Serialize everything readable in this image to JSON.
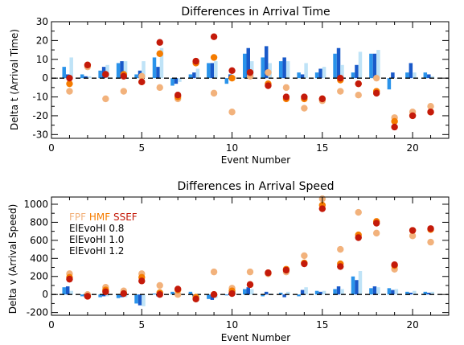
{
  "colors": {
    "fpf": "#f2b27c",
    "hmf": "#f57c00",
    "ssef": "#c41a0a",
    "elevohi_08": "#1959c9",
    "elevohi_10": "#2a93ea",
    "elevohi_12": "#bfe3f7"
  },
  "chart_data": [
    {
      "type": "bar",
      "title": "Differences in Arrival Time",
      "xlabel": "Event Number",
      "ylabel": "Delta t (Arrival Time)",
      "xlim": [
        0,
        22
      ],
      "ylim": [
        -32,
        30
      ],
      "xticks": [
        0,
        5,
        10,
        15,
        20
      ],
      "yticks": [
        -30,
        -20,
        -10,
        0,
        10,
        20,
        30
      ],
      "events": [
        1,
        2,
        3,
        4,
        5,
        6,
        7,
        8,
        9,
        10,
        11,
        12,
        13,
        14,
        15,
        16,
        17,
        18,
        19,
        20,
        21
      ],
      "bar_series": [
        {
          "name": "ElEvoHI 1.0",
          "color_key": "elevohi_10",
          "offset": -0.3,
          "values": [
            6,
            2,
            4,
            8,
            2,
            11,
            -4,
            2,
            8,
            -3,
            13,
            11,
            9,
            3,
            3,
            13,
            3,
            13,
            -6,
            3,
            3
          ]
        },
        {
          "name": "ElEvoHI 0.8",
          "color_key": "elevohi_08",
          "offset": -0.1,
          "values": [
            2,
            1,
            6,
            9,
            4,
            6,
            -3,
            3,
            8,
            2,
            16,
            17,
            11,
            2,
            5,
            16,
            7,
            13,
            3,
            8,
            2
          ]
        },
        {
          "name": "ElEvoHI 1.2",
          "color_key": "elevohi_12",
          "offset": 0.1,
          "values": [
            11,
            1,
            7,
            9,
            9,
            16,
            -2,
            5,
            9,
            1,
            9,
            8,
            9,
            8,
            6,
            7,
            14,
            15,
            0,
            3,
            1
          ]
        }
      ],
      "dot_series": [
        {
          "name": "FPF",
          "color_key": "fpf",
          "values": [
            -7,
            6,
            -11,
            -7,
            1,
            -5,
            -11,
            9,
            -8,
            -18,
            1,
            3,
            -5,
            -16,
            -12,
            -7,
            -9,
            0,
            -21,
            -18,
            -15
          ]
        },
        {
          "name": "HMF",
          "color_key": "hmf",
          "values": [
            -3,
            7,
            2,
            2,
            -2,
            13,
            -10,
            8,
            11,
            0,
            3,
            -3,
            -11,
            -11,
            -11,
            -1,
            -3,
            -7,
            -23,
            -20,
            -18
          ]
        },
        {
          "name": "SSEF",
          "color_key": "ssef",
          "values": [
            0,
            7,
            2,
            1,
            -2,
            19,
            -9,
            9,
            22,
            4,
            3,
            -4,
            -10,
            -10,
            -11,
            0,
            -3,
            -8,
            -26,
            -20,
            -18
          ]
        }
      ]
    },
    {
      "type": "bar",
      "title": "Differences in Arrival Speed",
      "xlabel": "Event Number",
      "ylabel": "Delta v (Arrival Speed)",
      "xlim": [
        0,
        22
      ],
      "ylim": [
        -230,
        1080
      ],
      "xticks": [
        0,
        5,
        10,
        15,
        20
      ],
      "yticks": [
        -200,
        0,
        200,
        400,
        600,
        800,
        1000
      ],
      "legend": {
        "placement": "upper-left",
        "line1": [
          "FPF",
          "HMF",
          "SSEF"
        ],
        "line2": "ElEvoHI 0.8",
        "line3": "ElEvoHI 1.0",
        "line4": "ElEvoHI 1.2"
      },
      "events": [
        1,
        2,
        3,
        4,
        5,
        6,
        7,
        8,
        9,
        10,
        11,
        12,
        13,
        14,
        15,
        16,
        17,
        18,
        19,
        20,
        21
      ],
      "bar_series": [
        {
          "name": "ElEvoHI 1.0",
          "color_key": "elevohi_10",
          "offset": -0.3,
          "values": [
            80,
            -20,
            -30,
            -40,
            -100,
            10,
            30,
            30,
            -50,
            -10,
            60,
            -20,
            20,
            -20,
            40,
            60,
            200,
            70,
            70,
            30,
            30
          ]
        },
        {
          "name": "ElEvoHI 0.8",
          "color_key": "elevohi_08",
          "offset": -0.1,
          "values": [
            90,
            -30,
            -20,
            -30,
            -120,
            -20,
            20,
            -20,
            -60,
            20,
            80,
            30,
            -30,
            50,
            30,
            90,
            160,
            90,
            50,
            20,
            20
          ]
        },
        {
          "name": "ElEvoHI 1.2",
          "color_key": "elevohi_12",
          "offset": 0.1,
          "values": [
            40,
            -10,
            -20,
            -30,
            -130,
            20,
            10,
            -40,
            -40,
            40,
            60,
            10,
            30,
            80,
            40,
            60,
            260,
            80,
            60,
            40,
            30
          ]
        }
      ],
      "dot_series": [
        {
          "name": "FPF",
          "color_key": "fpf",
          "values": [
            230,
            0,
            80,
            40,
            230,
            100,
            0,
            -50,
            250,
            70,
            250,
            230,
            250,
            430,
            1060,
            500,
            910,
            680,
            280,
            650,
            580
          ]
        },
        {
          "name": "HMF",
          "color_key": "hmf",
          "values": [
            190,
            -20,
            50,
            10,
            190,
            20,
            50,
            -30,
            0,
            40,
            110,
            240,
            280,
            350,
            990,
            340,
            660,
            810,
            320,
            710,
            720
          ]
        },
        {
          "name": "SSEF",
          "color_key": "ssef",
          "values": [
            170,
            -20,
            30,
            10,
            150,
            0,
            60,
            -50,
            0,
            10,
            110,
            240,
            270,
            340,
            950,
            310,
            630,
            790,
            330,
            710,
            730
          ]
        }
      ]
    }
  ]
}
